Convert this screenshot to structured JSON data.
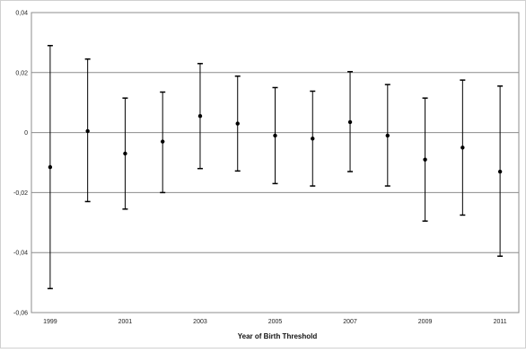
{
  "chart_data": {
    "type": "scatter",
    "subtype": "error-bar",
    "title": "",
    "xlabel": "Year of Birth Threshold",
    "ylabel": "",
    "x": [
      1999,
      2000,
      2001,
      2002,
      2003,
      2004,
      2005,
      2006,
      2007,
      2008,
      2009,
      2010,
      2011
    ],
    "x_tick_labels": [
      "1999",
      "2001",
      "2003",
      "2005",
      "2007",
      "2009",
      "2011"
    ],
    "y_tick_labels": [
      "0,04",
      "0,02",
      "0",
      "-0,02",
      "-0,04",
      "-0,06"
    ],
    "y_ticks": [
      0.04,
      0.02,
      0,
      -0.02,
      -0.04,
      -0.06
    ],
    "ylim": [
      -0.06,
      0.04
    ],
    "grid": "horizontal",
    "series": [
      {
        "estimate": [
          -0.0115,
          0.0005,
          -0.007,
          -0.003,
          0.0055,
          0.003,
          -0.001,
          -0.002,
          0.0035,
          -0.001,
          -0.009,
          -0.005,
          -0.013
        ],
        "upper": [
          0.029,
          0.0245,
          0.0115,
          0.0135,
          0.023,
          0.0188,
          0.015,
          0.0138,
          0.0203,
          0.016,
          0.0115,
          0.0175,
          0.0155
        ],
        "lower": [
          -0.052,
          -0.023,
          -0.0255,
          -0.02,
          -0.012,
          -0.0128,
          -0.017,
          -0.0178,
          -0.013,
          -0.0178,
          -0.0295,
          -0.0275,
          -0.0412
        ]
      }
    ],
    "colors": {
      "marks": "#000000",
      "grid": "#8c8c8c",
      "frame": "#8c8c8c"
    }
  }
}
